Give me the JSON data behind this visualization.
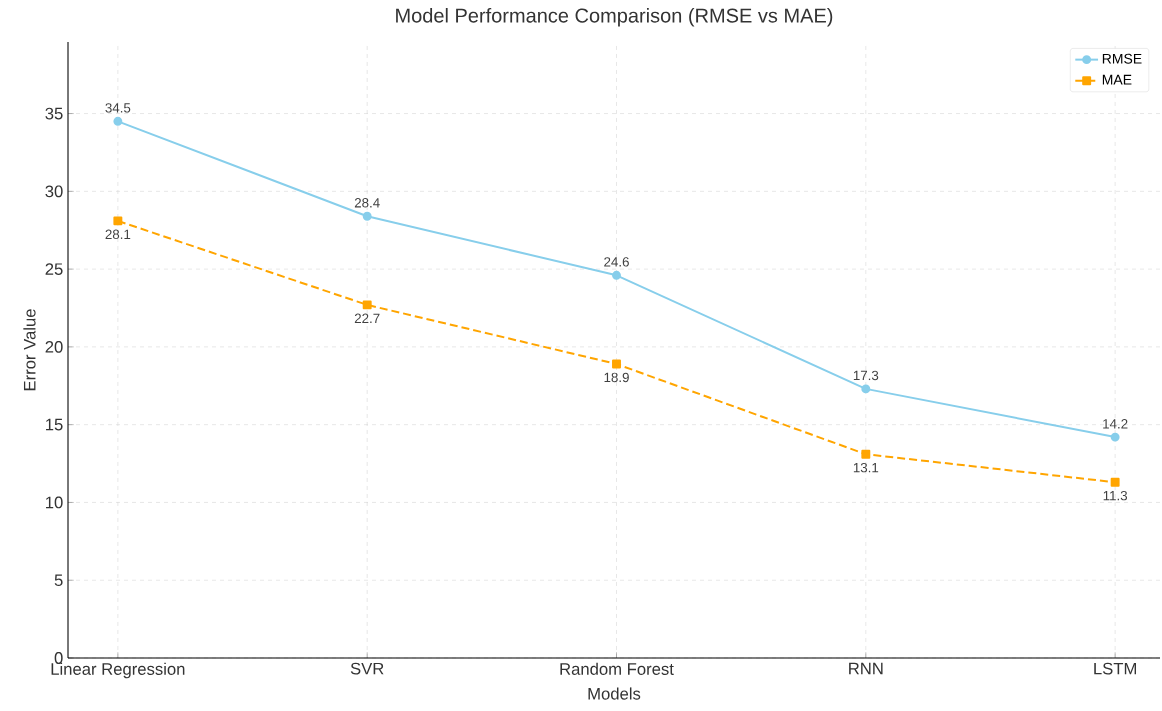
{
  "chart_data": {
    "type": "line",
    "title": "Model Performance Comparison (RMSE vs MAE)",
    "xlabel": "Models",
    "ylabel": "Error Value",
    "categories": [
      "Linear Regression",
      "SVR",
      "Random Forest",
      "RNN",
      "LSTM"
    ],
    "series": [
      {
        "name": "RMSE",
        "color": "#87ceeb",
        "values": [
          34.5,
          28.4,
          24.6,
          17.3,
          14.2
        ],
        "marker": "circle",
        "line_style": "solid"
      },
      {
        "name": "MAE",
        "color": "#ffa500",
        "values": [
          28.1,
          22.7,
          18.9,
          13.1,
          11.3
        ],
        "marker": "square",
        "line_style": "dashed"
      }
    ],
    "ylim": [
      0,
      39.6
    ],
    "yticks": [
      0,
      5,
      10,
      15,
      20,
      25,
      30,
      35
    ],
    "grid": true,
    "legend": "top right",
    "data_labels": true
  }
}
